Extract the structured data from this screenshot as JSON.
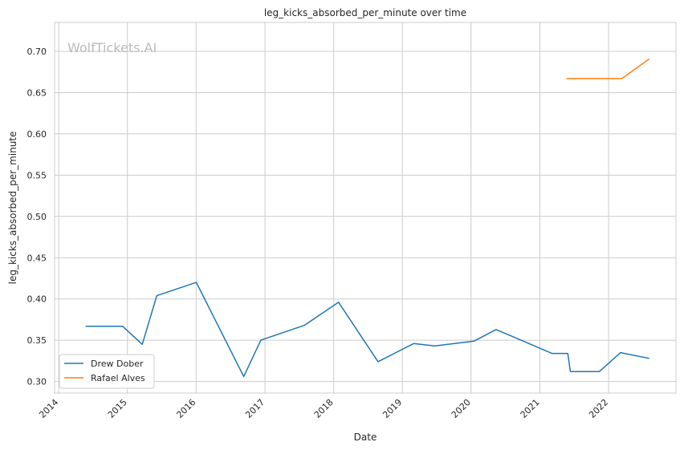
{
  "chart_data": {
    "type": "line",
    "title": "leg_kicks_absorbed_per_minute over time",
    "xlabel": "Date",
    "ylabel": "leg_kicks_absorbed_per_minute",
    "watermark": "WolfTickets.AI",
    "x_ticks": [
      "2014",
      "2015",
      "2016",
      "2017",
      "2018",
      "2019",
      "2020",
      "2021",
      "2022"
    ],
    "y_ticks": [
      "0.30",
      "0.35",
      "0.40",
      "0.45",
      "0.50",
      "0.55",
      "0.60",
      "0.65",
      "0.70"
    ],
    "xlim": [
      "2013-12-10",
      "2022-12-25"
    ],
    "ylim": [
      0.286,
      0.735
    ],
    "grid": true,
    "legend_position": "lower-left",
    "series": [
      {
        "name": "Drew Dober",
        "color": "#1f77b4",
        "points": [
          {
            "x": "2014-05-24",
            "y": 0.367
          },
          {
            "x": "2014-12-06",
            "y": 0.367
          },
          {
            "x": "2015-03-21",
            "y": 0.345
          },
          {
            "x": "2015-06-06",
            "y": 0.404
          },
          {
            "x": "2016-01-02",
            "y": 0.42
          },
          {
            "x": "2016-09-10",
            "y": 0.306
          },
          {
            "x": "2016-12-10",
            "y": 0.35
          },
          {
            "x": "2017-07-29",
            "y": 0.368
          },
          {
            "x": "2018-01-27",
            "y": 0.396
          },
          {
            "x": "2018-08-25",
            "y": 0.324
          },
          {
            "x": "2019-03-02",
            "y": 0.346
          },
          {
            "x": "2019-06-22",
            "y": 0.343
          },
          {
            "x": "2020-01-18",
            "y": 0.349
          },
          {
            "x": "2020-05-13",
            "y": 0.363
          },
          {
            "x": "2021-03-06",
            "y": 0.334
          },
          {
            "x": "2021-05-29",
            "y": 0.334
          },
          {
            "x": "2021-06-12",
            "y": 0.312
          },
          {
            "x": "2021-11-13",
            "y": 0.312
          },
          {
            "x": "2022-03-05",
            "y": 0.335
          },
          {
            "x": "2022-08-06",
            "y": 0.328
          }
        ]
      },
      {
        "name": "Rafael Alves",
        "color": "#ff7f0e",
        "points": [
          {
            "x": "2021-05-22",
            "y": 0.667
          },
          {
            "x": "2022-03-12",
            "y": 0.667
          },
          {
            "x": "2022-08-06",
            "y": 0.691
          }
        ]
      }
    ]
  }
}
